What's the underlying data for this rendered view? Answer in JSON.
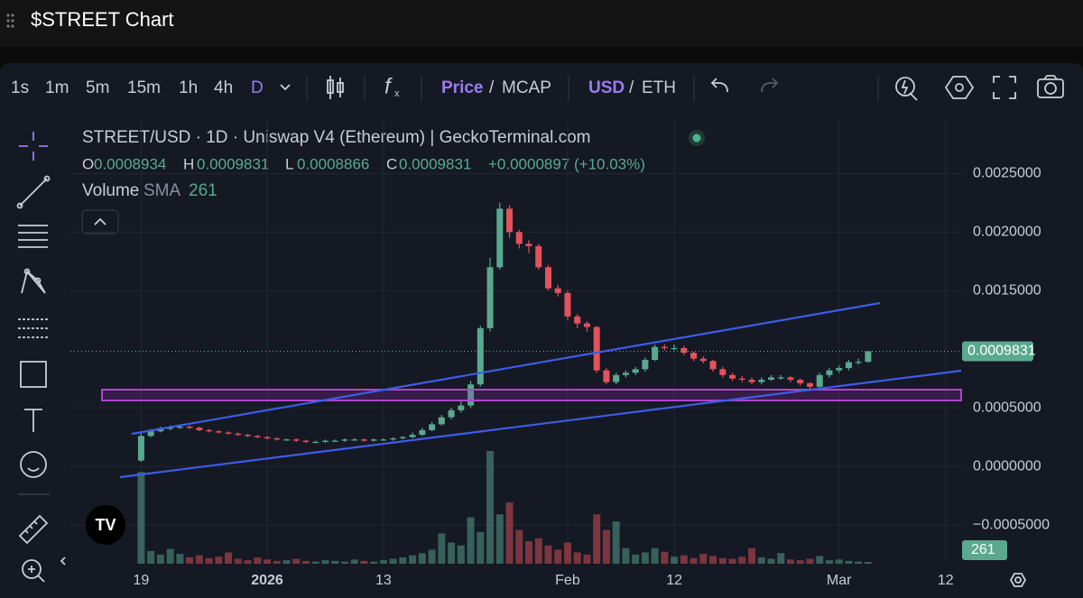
{
  "window": {
    "title": "$STREET Chart"
  },
  "toolbar": {
    "intervals": [
      "1s",
      "1m",
      "5m",
      "15m",
      "1h",
      "4h",
      "D"
    ],
    "price_modes": [
      "Price",
      "MCAP"
    ],
    "currencies": [
      "USD",
      "ETH"
    ],
    "separator": "/"
  },
  "chart_data": {
    "type": "candlestick",
    "title": "STREET/USD · 1D · Uniswap V4 (Ethereum) | GeckoTerminal.com",
    "ohlc_labels": [
      "O",
      "H",
      "L",
      "C"
    ],
    "change_label": "+0.0000897 (+10.03%)",
    "volume_label": "Volume",
    "volume_sma_label": "SMA",
    "up_color": "#5aa98f",
    "down_color": "#e2535b",
    "open": [
      5e-05,
      0.00026,
      0.0003,
      0.00032,
      0.00033,
      0.00034,
      0.00033,
      0.00031,
      0.0003,
      0.00029,
      0.00028,
      0.00027,
      0.00026,
      0.00025,
      0.00024,
      0.00023,
      0.00023,
      0.00022,
      0.00021,
      0.00021,
      0.00022,
      0.00022,
      0.00023,
      0.00023,
      0.00022,
      0.00023,
      0.00023,
      0.00024,
      0.00025,
      0.00027,
      0.00031,
      0.00036,
      0.00042,
      0.00048,
      0.00052,
      0.0007,
      0.00118,
      0.0017,
      0.0022,
      0.002,
      0.0019,
      0.00188,
      0.0017,
      0.00152,
      0.00148,
      0.00128,
      0.00122,
      0.00119,
      0.00082,
      0.00072,
      0.00078,
      0.0008,
      0.00083,
      0.00091,
      0.00102,
      0.00101,
      0.00101,
      0.00097,
      0.00092,
      0.0009,
      0.00083,
      0.00078,
      0.00075,
      0.00074,
      0.00072,
      0.00074,
      0.00076,
      0.00076,
      0.00074,
      0.00071,
      0.00068,
      0.00078,
      0.00082,
      0.00084,
      0.00089,
      0.0008934
    ],
    "high": [
      0.00029,
      0.00032,
      0.00034,
      0.00035,
      0.00036,
      0.00035,
      0.00034,
      0.00032,
      0.00031,
      0.0003,
      0.00029,
      0.00028,
      0.00027,
      0.00026,
      0.00025,
      0.00024,
      0.00024,
      0.00023,
      0.00022,
      0.00023,
      0.00023,
      0.00024,
      0.00024,
      0.00024,
      0.00024,
      0.00024,
      0.00025,
      0.00026,
      0.00029,
      0.00033,
      0.00038,
      0.00044,
      0.0005,
      0.00056,
      0.00073,
      0.0012,
      0.00178,
      0.00225,
      0.00223,
      0.00202,
      0.00193,
      0.0019,
      0.00172,
      0.00155,
      0.0015,
      0.0013,
      0.00124,
      0.0012,
      0.00084,
      0.0008,
      0.00082,
      0.00085,
      0.00093,
      0.00104,
      0.00104,
      0.00104,
      0.00103,
      0.00098,
      0.00094,
      0.00091,
      0.00085,
      0.0008,
      0.00077,
      0.00076,
      0.00076,
      0.00078,
      0.00078,
      0.00077,
      0.00075,
      0.00072,
      0.0008,
      0.00084,
      0.00086,
      0.00091,
      0.00092,
      0.0009831
    ],
    "low": [
      4e-05,
      0.00025,
      0.00029,
      0.00031,
      0.00032,
      0.00032,
      0.0003,
      0.00029,
      0.00028,
      0.00027,
      0.00026,
      0.00025,
      0.00024,
      0.00023,
      0.00022,
      0.00022,
      0.00021,
      0.0002,
      0.0002,
      0.0002,
      0.00021,
      0.00021,
      0.00022,
      0.00021,
      0.00021,
      0.00022,
      0.00022,
      0.00023,
      0.00024,
      0.00026,
      0.0003,
      0.00035,
      0.0004,
      0.00046,
      0.0005,
      0.00068,
      0.00115,
      0.00168,
      0.00195,
      0.00186,
      0.00182,
      0.00168,
      0.0015,
      0.00145,
      0.00125,
      0.00118,
      0.00115,
      0.0008,
      0.0007,
      0.0007,
      0.00076,
      0.00078,
      0.00081,
      0.0009,
      0.00099,
      0.00099,
      0.00095,
      0.0009,
      0.00088,
      0.00081,
      0.00076,
      0.00073,
      0.00072,
      0.0007,
      0.0007,
      0.00073,
      0.00074,
      0.00072,
      0.00069,
      0.00066,
      0.00066,
      0.00076,
      0.0008,
      0.00082,
      0.00087,
      0.0008866
    ],
    "close": [
      0.00026,
      0.0003,
      0.00032,
      0.00033,
      0.00034,
      0.00033,
      0.00031,
      0.0003,
      0.00029,
      0.00028,
      0.00027,
      0.00026,
      0.00025,
      0.00024,
      0.00023,
      0.00023,
      0.00022,
      0.00021,
      0.00021,
      0.00022,
      0.00022,
      0.00023,
      0.00023,
      0.00022,
      0.00023,
      0.00023,
      0.00024,
      0.00025,
      0.00027,
      0.00031,
      0.00036,
      0.00042,
      0.00048,
      0.00052,
      0.0007,
      0.00118,
      0.0017,
      0.0022,
      0.002,
      0.0019,
      0.00188,
      0.0017,
      0.00152,
      0.00148,
      0.00128,
      0.00122,
      0.00119,
      0.00082,
      0.00072,
      0.00078,
      0.0008,
      0.00083,
      0.00091,
      0.00102,
      0.00101,
      0.00101,
      0.00097,
      0.00092,
      0.0009,
      0.00083,
      0.00078,
      0.00075,
      0.00074,
      0.00072,
      0.00074,
      0.00076,
      0.00076,
      0.00074,
      0.00071,
      0.00068,
      0.00078,
      0.00082,
      0.00084,
      0.00089,
      0.0008934,
      0.0009831
    ],
    "volume": [
      13000,
      1800,
      1300,
      2100,
      1400,
      900,
      1200,
      800,
      1000,
      1600,
      700,
      500,
      900,
      600,
      400,
      500,
      700,
      400,
      300,
      500,
      400,
      300,
      600,
      400,
      300,
      500,
      700,
      900,
      1200,
      1500,
      2000,
      4300,
      3000,
      2600,
      6600,
      4500,
      16000,
      7000,
      8700,
      4800,
      3200,
      3600,
      2600,
      2000,
      3000,
      1600,
      1300,
      7000,
      4800,
      6000,
      2200,
      1300,
      1600,
      2200,
      1700,
      1000,
      1200,
      800,
      1400,
      1100,
      800,
      700,
      1000,
      2200,
      900,
      700,
      1500,
      600,
      500,
      700,
      1100,
      500,
      600,
      400,
      300,
      261
    ],
    "xlim": [
      -7.3,
      84.6
    ],
    "xticks": [
      {
        "value": 0,
        "label": "19"
      },
      {
        "value": 13,
        "label": "2026"
      },
      {
        "value": 25,
        "label": "13"
      },
      {
        "value": 44,
        "label": "Feb"
      },
      {
        "value": 55,
        "label": "12"
      },
      {
        "value": 72,
        "label": "Mar"
      },
      {
        "value": 83,
        "label": "12"
      }
    ],
    "ylim": [
      -0.00083,
      0.00298
    ],
    "yticks": [
      {
        "value": 0.0025,
        "label": "0.0025000"
      },
      {
        "value": 0.002,
        "label": "0.0020000"
      },
      {
        "value": 0.0015,
        "label": "0.0015000"
      },
      {
        "value": 0.0005,
        "label": "0.0005000"
      },
      {
        "value": 0,
        "label": "0.0000000"
      },
      {
        "value": -0.0005,
        "label": "−0.0005000"
      }
    ],
    "grid": true
  }
}
